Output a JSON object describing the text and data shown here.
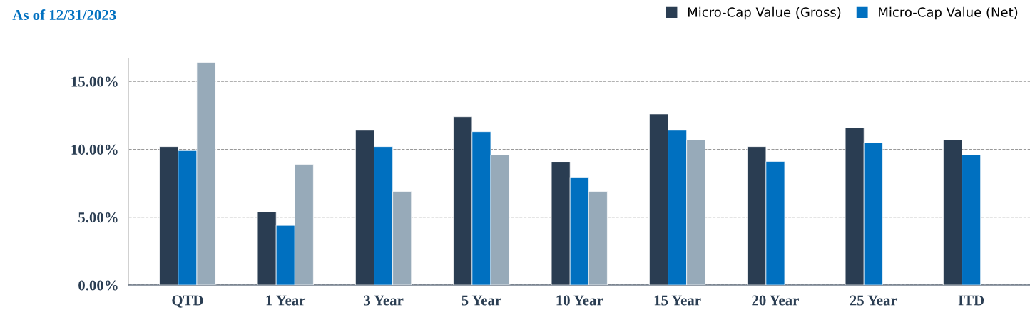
{
  "chart_data": {
    "type": "bar",
    "subtitle": "As of 12/31/2023",
    "categories": [
      "QTD",
      "1 Year",
      "3 Year",
      "5 Year",
      "10 Year",
      "15 Year",
      "20 Year",
      "25 Year",
      "ITD"
    ],
    "series": [
      {
        "name": "Micro-Cap Value (Gross)",
        "color": "#2a3d52",
        "values": [
          10.2,
          5.4,
          11.4,
          12.4,
          9.05,
          12.6,
          10.2,
          11.6,
          10.7
        ]
      },
      {
        "name": "Micro-Cap Value (Net)",
        "color": "#0070c0",
        "values": [
          9.9,
          4.4,
          10.2,
          11.3,
          7.9,
          11.4,
          9.1,
          10.5,
          9.6
        ]
      },
      {
        "color": "#97aab9",
        "values": [
          16.4,
          8.9,
          6.9,
          9.6,
          6.9,
          10.7,
          null,
          null,
          null
        ]
      }
    ],
    "ylim": [
      0,
      16.7
    ],
    "yticks": [
      {
        "value": 0,
        "label": "0.00%"
      },
      {
        "value": 5,
        "label": "5.00%"
      },
      {
        "value": 10,
        "label": "10.00%"
      },
      {
        "value": 15,
        "label": "15.00%"
      }
    ],
    "grid": "y",
    "legend": "top right"
  }
}
